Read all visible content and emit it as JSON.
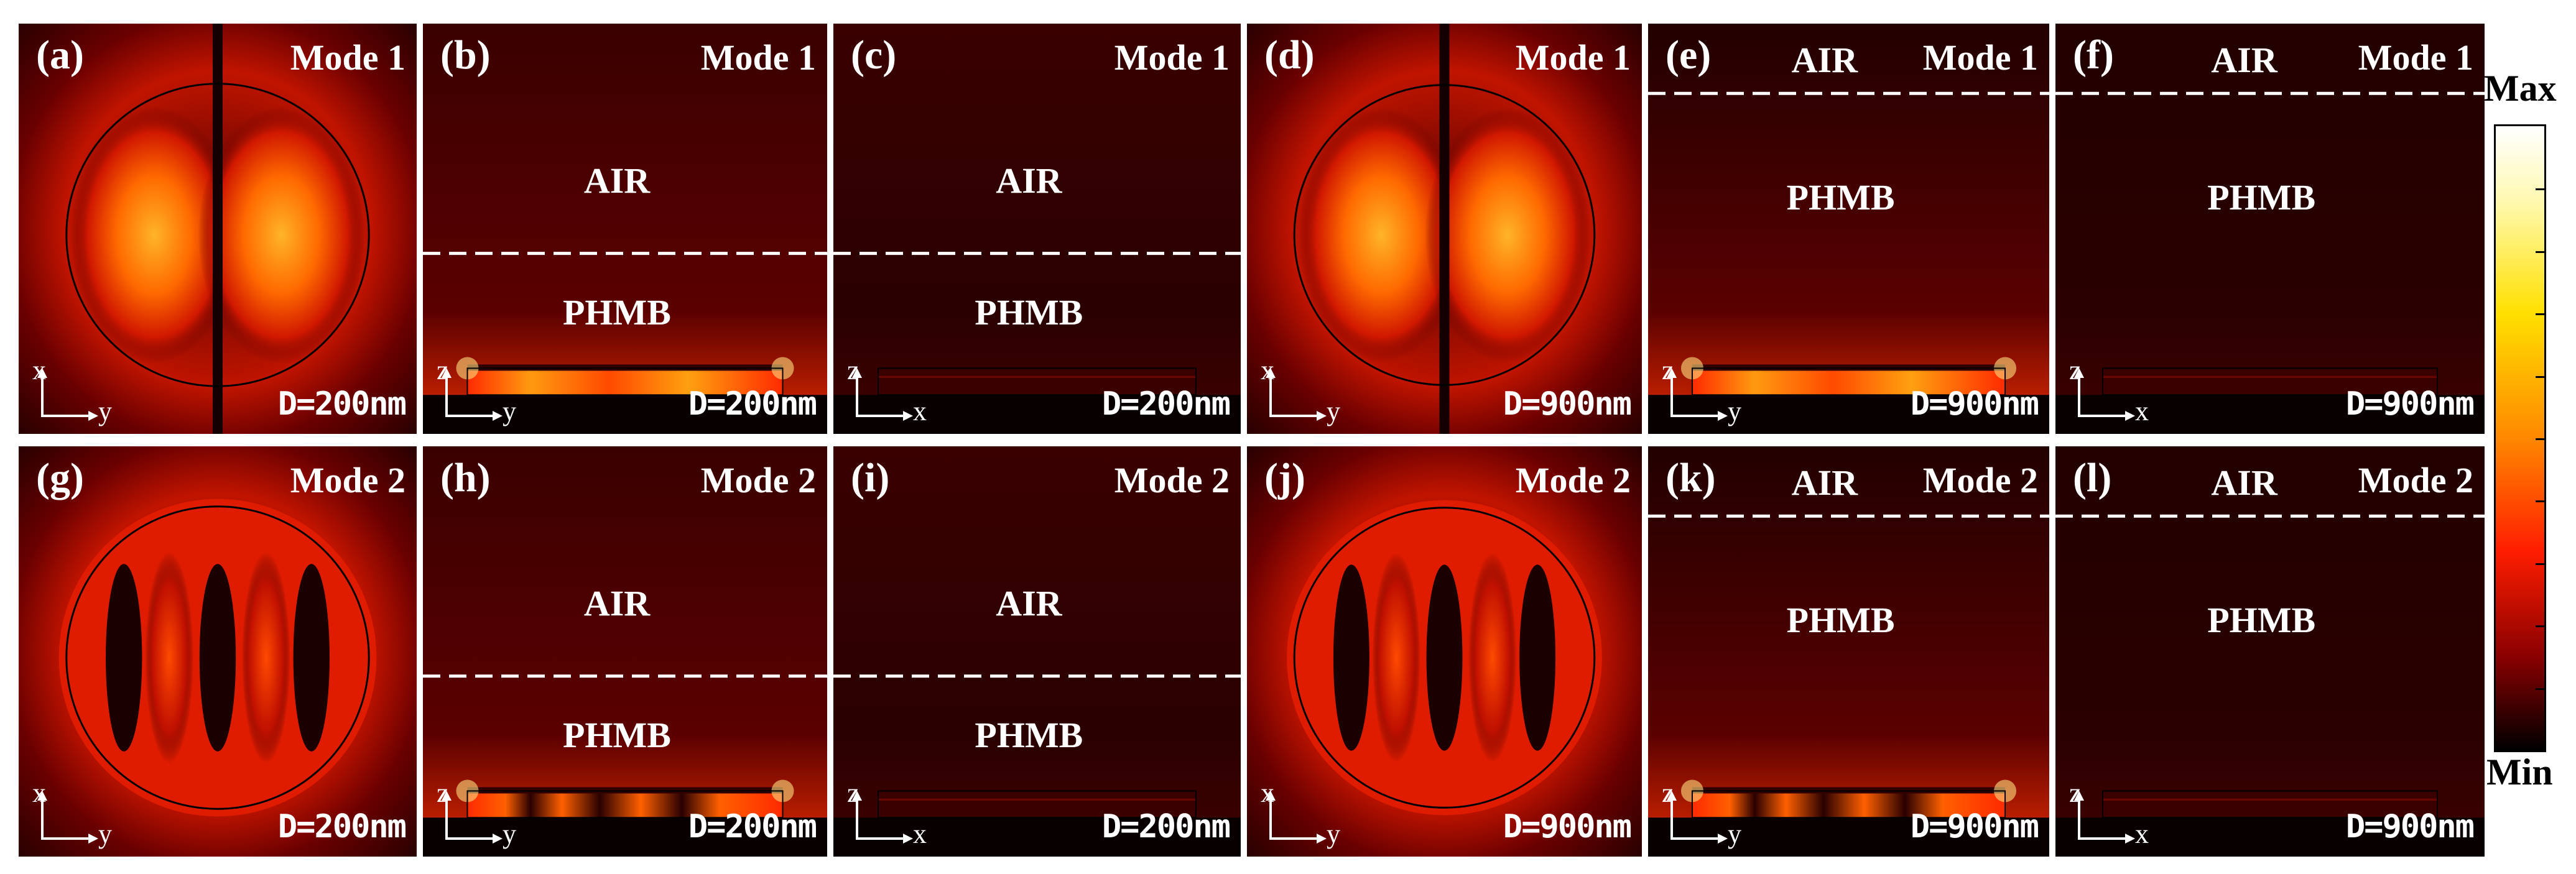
{
  "panels": [
    {
      "label": "(a)",
      "mode": "Mode 1",
      "D": "D=200nm",
      "kind": "circle",
      "axes": {
        "v": "x",
        "h": "y"
      },
      "lobes": 2,
      "regions": []
    },
    {
      "label": "(b)",
      "mode": "Mode 1",
      "D": "D=200nm",
      "kind": "side",
      "axes": {
        "v": "z",
        "h": "y"
      },
      "interface": 0.56,
      "air": "AIR",
      "phmb": "PHMB",
      "intensity": "bright"
    },
    {
      "label": "(c)",
      "mode": "Mode 1",
      "D": "D=200nm",
      "kind": "side",
      "axes": {
        "v": "z",
        "h": "x"
      },
      "interface": 0.56,
      "air": "AIR",
      "phmb": "PHMB",
      "intensity": "dark"
    },
    {
      "label": "(d)",
      "mode": "Mode 1",
      "D": "D=900nm",
      "kind": "circle",
      "axes": {
        "v": "x",
        "h": "y"
      },
      "lobes": 2,
      "regions": []
    },
    {
      "label": "(e)",
      "mode": "Mode 1",
      "D": "D=900nm",
      "kind": "sideTop",
      "axes": {
        "v": "z",
        "h": "y"
      },
      "interface": 0.17,
      "air": "AIR",
      "phmb": "PHMB",
      "intensity": "bright"
    },
    {
      "label": "(f)",
      "mode": "Mode 1",
      "D": "D=900nm",
      "kind": "sideTop",
      "axes": {
        "v": "z",
        "h": "x"
      },
      "interface": 0.17,
      "air": "AIR",
      "phmb": "PHMB",
      "intensity": "dark"
    },
    {
      "label": "(g)",
      "mode": "Mode 2",
      "D": "D=200nm",
      "kind": "circle",
      "axes": {
        "v": "x",
        "h": "y"
      },
      "lobes": 3,
      "regions": []
    },
    {
      "label": "(h)",
      "mode": "Mode 2",
      "D": "D=200nm",
      "kind": "side",
      "axes": {
        "v": "z",
        "h": "y"
      },
      "interface": 0.56,
      "air": "AIR",
      "phmb": "PHMB",
      "intensity": "bright2"
    },
    {
      "label": "(i)",
      "mode": "Mode 2",
      "D": "D=200nm",
      "kind": "side",
      "axes": {
        "v": "z",
        "h": "x"
      },
      "interface": 0.56,
      "air": "AIR",
      "phmb": "PHMB",
      "intensity": "dark2"
    },
    {
      "label": "(j)",
      "mode": "Mode 2",
      "D": "D=900nm",
      "kind": "circle",
      "axes": {
        "v": "x",
        "h": "y"
      },
      "lobes": 3,
      "regions": []
    },
    {
      "label": "(k)",
      "mode": "Mode 2",
      "D": "D=900nm",
      "kind": "sideTop",
      "axes": {
        "v": "z",
        "h": "y"
      },
      "interface": 0.17,
      "air": "AIR",
      "phmb": "PHMB",
      "intensity": "bright2"
    },
    {
      "label": "(l)",
      "mode": "Mode 2",
      "D": "D=900nm",
      "kind": "sideTop",
      "axes": {
        "v": "z",
        "h": "x"
      },
      "interface": 0.17,
      "air": "AIR",
      "phmb": "PHMB",
      "intensity": "dark2"
    }
  ],
  "colorbar": {
    "max": "Max",
    "min": "Min",
    "ticks": 10
  },
  "colors": {
    "field_bg": "#160000",
    "hot": "#ffb020",
    "red": "#ff2a00",
    "dark": "#1a0000",
    "white": "#ffffff"
  }
}
